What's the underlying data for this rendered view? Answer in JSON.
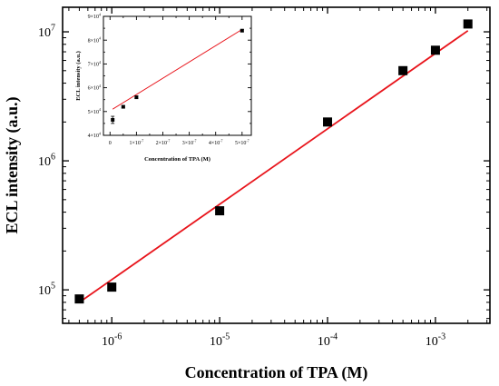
{
  "chart_data": [
    {
      "id": "main",
      "type": "scatter",
      "xlabel": "Concentration of TPA (M)",
      "ylabel": "ECL intensity (a.u.)",
      "x_scale": "log",
      "y_scale": "log",
      "xlim": [
        3.5e-07,
        0.0032
      ],
      "ylim": [
        55000.0,
        15500000.0
      ],
      "x_ticks": [
        {
          "value": 1e-06,
          "mant": "10",
          "exp": "-6"
        },
        {
          "value": 1e-05,
          "mant": "10",
          "exp": "-5"
        },
        {
          "value": 0.0001,
          "mant": "10",
          "exp": "-4"
        },
        {
          "value": 0.001,
          "mant": "10",
          "exp": "-3"
        }
      ],
      "y_ticks": [
        {
          "value": 100000.0,
          "mant": "10",
          "exp": "5"
        },
        {
          "value": 1000000.0,
          "mant": "10",
          "exp": "6"
        },
        {
          "value": 10000000.0,
          "mant": "10",
          "exp": "7"
        }
      ],
      "series": [
        {
          "marker_color": "#000000",
          "points": [
            {
              "x": 5e-07,
              "y": 85000.0
            },
            {
              "x": 1e-06,
              "y": 105000.0
            },
            {
              "x": 1e-05,
              "y": 410000.0
            },
            {
              "x": 0.0001,
              "y": 2000000.0
            },
            {
              "x": 0.0005,
              "y": 5000000.0
            },
            {
              "x": 0.001,
              "y": 7200000.0
            },
            {
              "x": 0.002,
              "y": 11500000.0
            }
          ]
        }
      ],
      "fit_line": {
        "color": "#e8141b",
        "x": [
          5e-07,
          0.002
        ],
        "y": [
          80000.0,
          10200000.0
        ]
      },
      "grid": false
    },
    {
      "id": "inset",
      "type": "scatter",
      "xlabel": "Concentration of TPA (M)",
      "ylabel": "ECL intensity (a.u.)",
      "x_scale": "linear",
      "y_scale": "linear",
      "xlim": [
        -2.5e-08,
        5.35e-07
      ],
      "ylim": [
        40000.0,
        90000.0
      ],
      "x_ticks": [
        {
          "value": 0,
          "label": "0"
        },
        {
          "value": 1e-07,
          "mant": "1×10",
          "exp": "-7"
        },
        {
          "value": 2e-07,
          "mant": "2×10",
          "exp": "-7"
        },
        {
          "value": 3e-07,
          "mant": "3×10",
          "exp": "-7"
        },
        {
          "value": 4e-07,
          "mant": "4×10",
          "exp": "-7"
        },
        {
          "value": 5e-07,
          "mant": "5×10",
          "exp": "-7"
        }
      ],
      "y_ticks": [
        {
          "value": 40000.0,
          "mant": "4×10",
          "exp": "4"
        },
        {
          "value": 50000.0,
          "mant": "5×10",
          "exp": "4"
        },
        {
          "value": 60000.0,
          "mant": "6×10",
          "exp": "4"
        },
        {
          "value": 70000.0,
          "mant": "7×10",
          "exp": "4"
        },
        {
          "value": 80000.0,
          "mant": "8×10",
          "exp": "4"
        },
        {
          "value": 90000.0,
          "mant": "9×10",
          "exp": "4"
        }
      ],
      "series": [
        {
          "marker_color": "#000000",
          "points": [
            {
              "x": 1e-08,
              "y": 46500.0,
              "err": 1500
            },
            {
              "x": 5e-08,
              "y": 52000.0,
              "err": 500
            },
            {
              "x": 1e-07,
              "y": 56000.0,
              "err": 500
            },
            {
              "x": 5e-07,
              "y": 84000.0,
              "err": 500
            }
          ]
        }
      ],
      "fit_line": {
        "color": "#e8141b",
        "x": [
          1e-08,
          5e-07
        ],
        "y": [
          51000.0,
          84500.0
        ]
      },
      "grid": false
    }
  ]
}
